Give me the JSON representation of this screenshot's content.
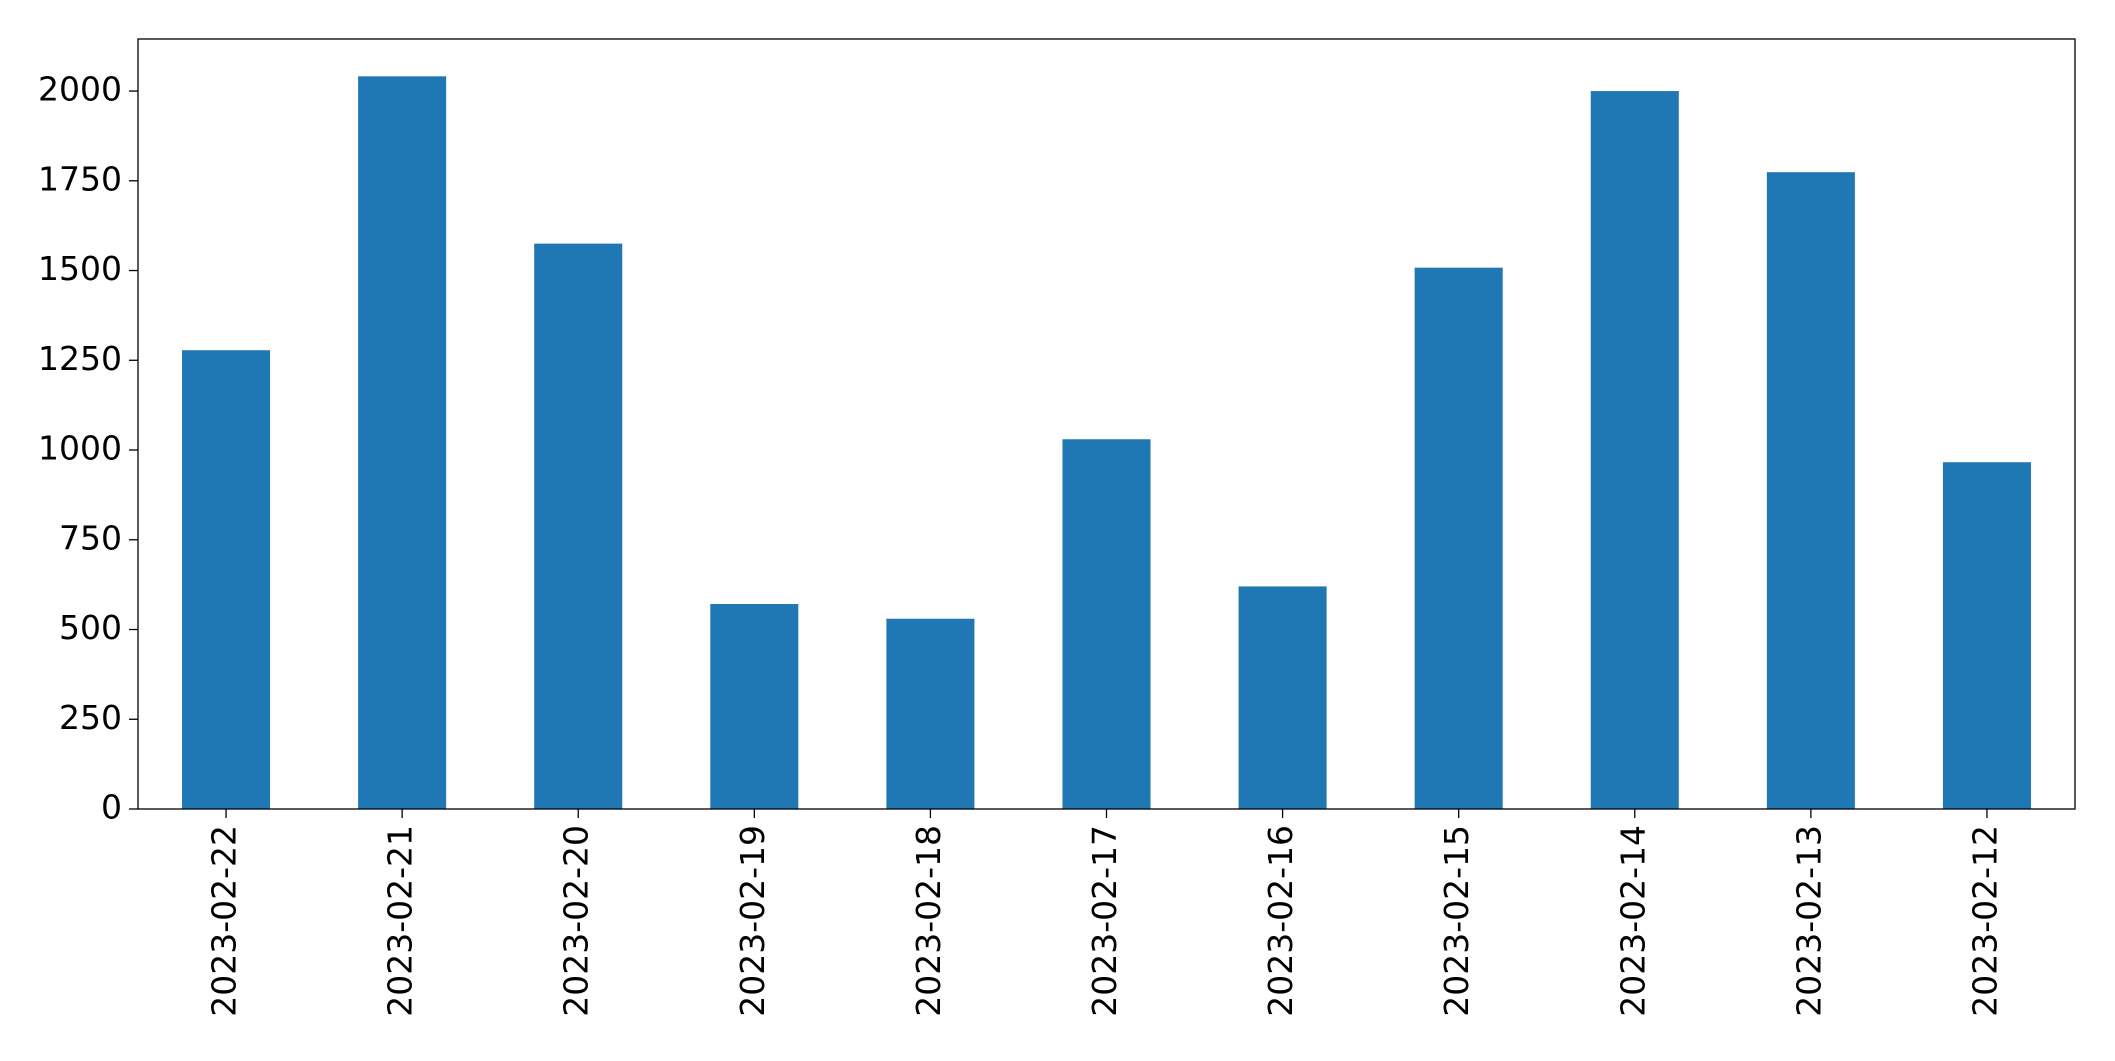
{
  "chart_data": {
    "type": "bar",
    "categories": [
      "2023-02-22",
      "2023-02-21",
      "2023-02-20",
      "2023-02-19",
      "2023-02-18",
      "2023-02-17",
      "2023-02-16",
      "2023-02-15",
      "2023-02-14",
      "2023-02-13",
      "2023-02-12"
    ],
    "values": [
      1278,
      2041,
      1575,
      571,
      530,
      1030,
      620,
      1508,
      2000,
      1774,
      966
    ],
    "color": "#1f77b4",
    "ylim": [
      0,
      2145
    ],
    "yticks": [
      0,
      250,
      500,
      750,
      1000,
      1250,
      1500,
      1750,
      2000
    ],
    "grid": false
  }
}
